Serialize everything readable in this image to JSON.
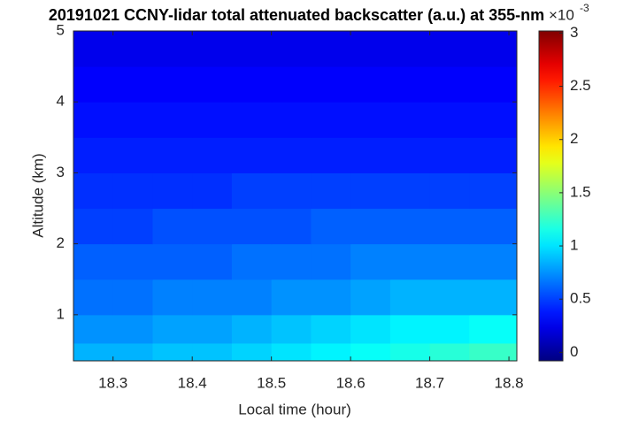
{
  "chart_data": {
    "type": "heatmap",
    "title": "20191021 CCNY-lidar total attenuated backscatter (a.u.) at 355-nm",
    "x_label": "Local time (hour)",
    "y_label": "Altitude (km)",
    "colorbar_multiplier": "×10",
    "colorbar_exponent": "-3",
    "colormap": "jet",
    "xlim": [
      18.25,
      18.81
    ],
    "xticks": [
      18.3,
      18.4,
      18.5,
      18.6,
      18.7,
      18.8
    ],
    "ylim": [
      0.35,
      5
    ],
    "yticks": [
      1,
      2,
      3,
      4,
      5
    ],
    "clim": [
      -0.08,
      3.02
    ],
    "cticks": [
      0,
      0.5,
      1,
      1.5,
      2,
      2.5,
      3
    ],
    "x_edges": [
      18.25,
      18.3,
      18.35,
      18.4,
      18.45,
      18.5,
      18.55,
      18.6,
      18.65,
      18.7,
      18.75,
      18.81
    ],
    "y_edges": [
      0.35,
      0.6,
      1,
      1.5,
      2,
      2.5,
      3,
      3.5,
      4,
      4.5,
      5
    ],
    "values": [
      [
        0.85,
        0.85,
        0.9,
        0.9,
        0.95,
        1.0,
        1.05,
        1.1,
        1.15,
        1.2,
        1.25
      ],
      [
        0.75,
        0.75,
        0.8,
        0.8,
        0.85,
        0.9,
        0.95,
        1.0,
        1.05,
        1.05,
        1.1
      ],
      [
        0.65,
        0.65,
        0.7,
        0.7,
        0.7,
        0.75,
        0.75,
        0.8,
        0.85,
        0.85,
        0.85
      ],
      [
        0.6,
        0.6,
        0.6,
        0.6,
        0.65,
        0.65,
        0.65,
        0.7,
        0.7,
        0.7,
        0.7
      ],
      [
        0.5,
        0.5,
        0.55,
        0.55,
        0.55,
        0.55,
        0.6,
        0.6,
        0.6,
        0.6,
        0.6
      ],
      [
        0.45,
        0.45,
        0.45,
        0.45,
        0.5,
        0.5,
        0.5,
        0.5,
        0.5,
        0.5,
        0.5
      ],
      [
        0.4,
        0.4,
        0.4,
        0.4,
        0.4,
        0.4,
        0.4,
        0.4,
        0.4,
        0.4,
        0.4
      ],
      [
        0.35,
        0.35,
        0.35,
        0.35,
        0.35,
        0.35,
        0.35,
        0.35,
        0.35,
        0.35,
        0.35
      ],
      [
        0.3,
        0.3,
        0.3,
        0.3,
        0.3,
        0.3,
        0.3,
        0.3,
        0.3,
        0.3,
        0.3
      ],
      [
        0.25,
        0.25,
        0.25,
        0.25,
        0.25,
        0.25,
        0.25,
        0.25,
        0.25,
        0.25,
        0.25
      ]
    ]
  }
}
